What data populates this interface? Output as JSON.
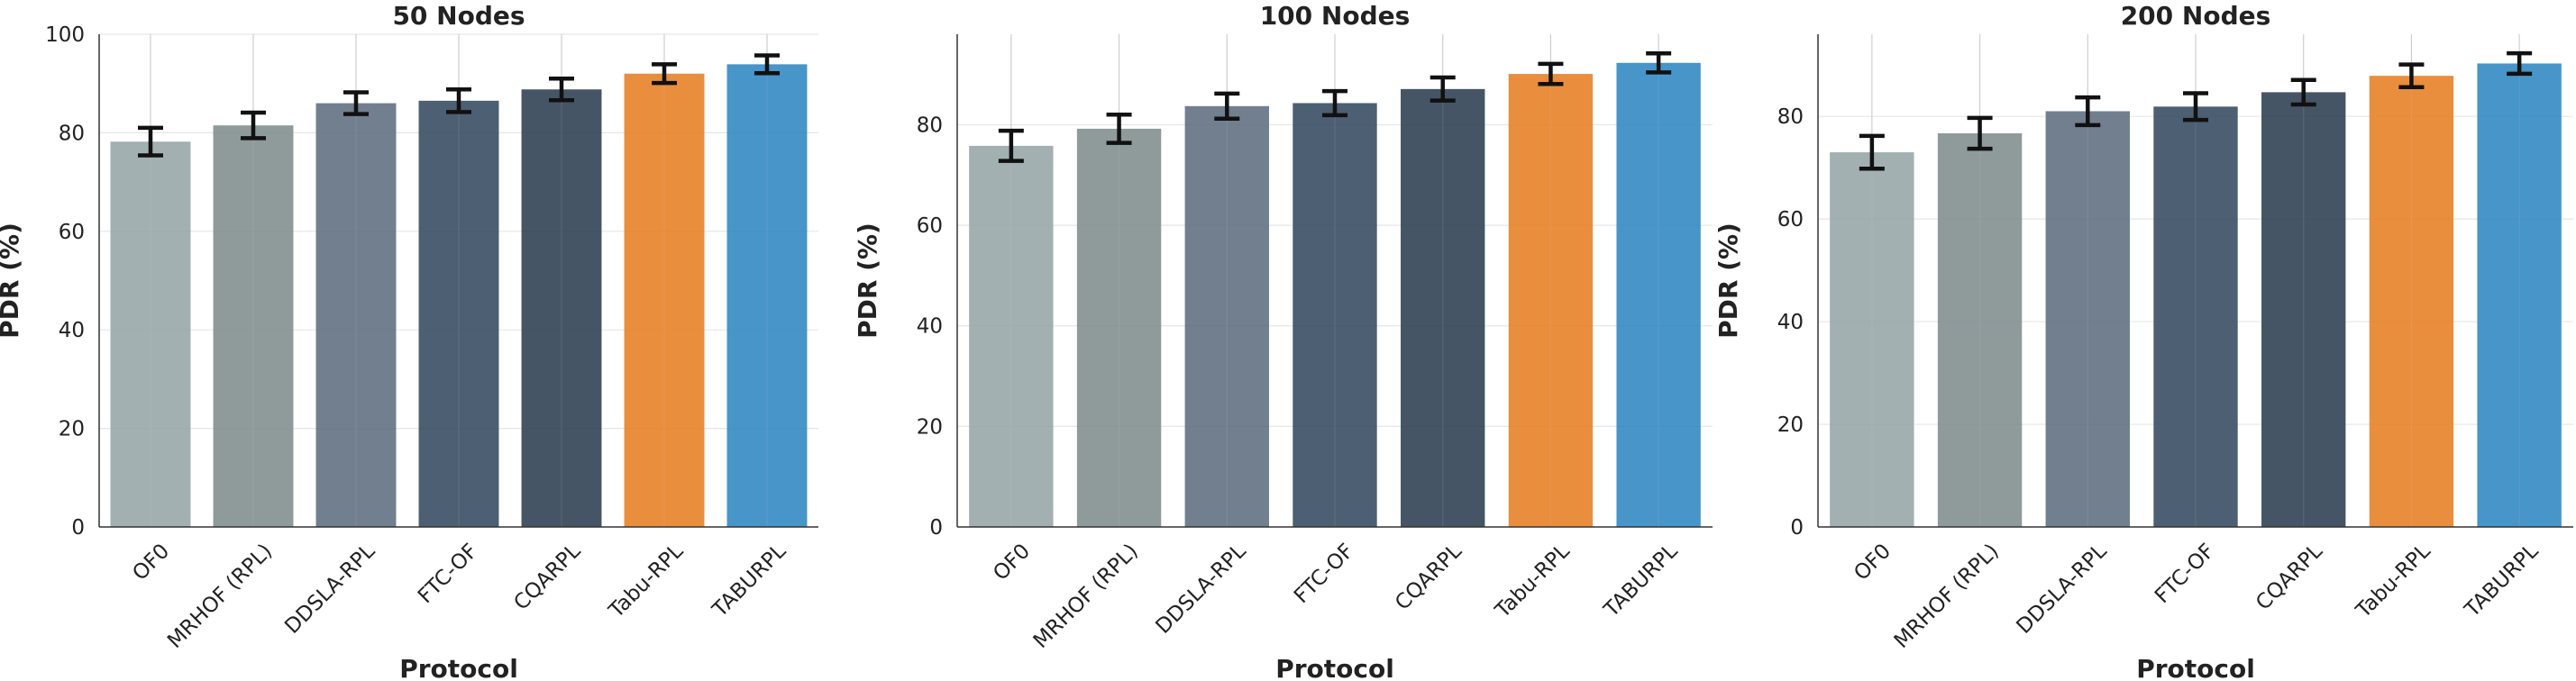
{
  "colors": {
    "OF0": "#95a5a6",
    "MRHOF (RPL)": "#7f8c8d",
    "DDSLA-RPL": "#5d6d7e",
    "FTC-OF": "#34495e",
    "CQARPL": "#2c3e50",
    "Tabu-RPL": "#e67e22",
    "TABURPL": "#2e86c1"
  },
  "chart_data": [
    {
      "type": "bar",
      "title": "50 Nodes",
      "xlabel": "Protocol",
      "ylabel": "PDR (%)",
      "ylim": [
        0,
        100
      ],
      "yticks": [
        0,
        20,
        40,
        60,
        80,
        100
      ],
      "categories": [
        "OF0",
        "MRHOF (RPL)",
        "DDSLA-RPL",
        "FTC-OF",
        "CQARPL",
        "Tabu-RPL",
        "TABURPL"
      ],
      "values": [
        78.2,
        81.5,
        86.0,
        86.5,
        88.8,
        92.0,
        93.9
      ],
      "errors": [
        2.8,
        2.6,
        2.2,
        2.3,
        2.2,
        1.9,
        1.8
      ],
      "grid": true
    },
    {
      "type": "bar",
      "title": "100 Nodes",
      "xlabel": "Protocol",
      "ylabel": "PDR (%)",
      "ylim": [
        0,
        98
      ],
      "yticks": [
        0,
        20,
        40,
        60,
        80
      ],
      "categories": [
        "OF0",
        "MRHOF (RPL)",
        "DDSLA-RPL",
        "FTC-OF",
        "CQARPL",
        "Tabu-RPL",
        "TABURPL"
      ],
      "values": [
        75.8,
        79.2,
        83.7,
        84.3,
        87.1,
        90.1,
        92.3
      ],
      "errors": [
        3.0,
        2.8,
        2.5,
        2.4,
        2.3,
        2.0,
        1.9
      ],
      "grid": true
    },
    {
      "type": "bar",
      "title": "200 Nodes",
      "xlabel": "Protocol",
      "ylabel": "PDR (%)",
      "ylim": [
        0,
        96
      ],
      "yticks": [
        0,
        20,
        40,
        60,
        80
      ],
      "categories": [
        "OF0",
        "MRHOF (RPL)",
        "DDSLA-RPL",
        "FTC-OF",
        "CQARPL",
        "Tabu-RPL",
        "TABURPL"
      ],
      "values": [
        73.0,
        76.7,
        81.0,
        81.9,
        84.7,
        87.9,
        90.3
      ],
      "errors": [
        3.2,
        3.0,
        2.7,
        2.6,
        2.4,
        2.2,
        2.0
      ],
      "grid": true
    }
  ]
}
